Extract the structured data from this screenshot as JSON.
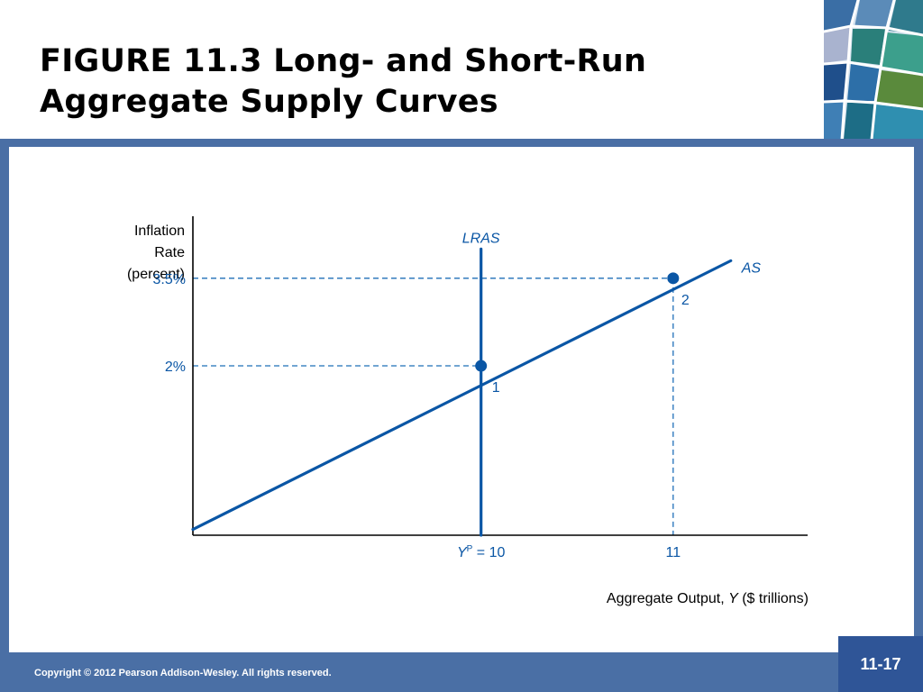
{
  "slide": {
    "title_line1": "FIGURE 11.3  Long- and Short-Run",
    "title_line2": "Aggregate Supply Curves",
    "copyright": "Copyright © 2012 Pearson Addison-Wesley. All rights reserved.",
    "page_number": "11-17"
  },
  "colors": {
    "curve": "#0a56a5",
    "dashed": "#1f6fb8",
    "frame": "#4a6fa5",
    "page_box": "#2f5597"
  },
  "chart_data": {
    "type": "line",
    "ylabel_lines": [
      "Inflation",
      "Rate",
      "(percent)"
    ],
    "xlabel_prefix": "Aggregate Output, ",
    "xlabel_var": "Y",
    "xlabel_suffix": " ($ trillions)",
    "xlim": [
      8.5,
      11.7
    ],
    "ylim": [
      -0.9,
      4.5
    ],
    "series": [
      {
        "name": "LRAS",
        "points": [
          [
            10,
            -0.9
          ],
          [
            10,
            4.0
          ]
        ]
      },
      {
        "name": "AS",
        "points": [
          [
            8.5,
            -0.8
          ],
          [
            11.3,
            3.8
          ]
        ]
      }
    ],
    "points": [
      {
        "label": "1",
        "x": 10,
        "y": 2.0
      },
      {
        "label": "2",
        "x": 11,
        "y": 3.5
      }
    ],
    "y_ticks": [
      {
        "value": 3.5,
        "label": "3.5%"
      },
      {
        "value": 2.0,
        "label": "2%"
      }
    ],
    "x_ticks": [
      {
        "value": 10,
        "var": "Y",
        "sup": "P",
        "rest": " = 10"
      },
      {
        "value": 11,
        "label": "11"
      }
    ],
    "grid": false,
    "legend": "none"
  }
}
